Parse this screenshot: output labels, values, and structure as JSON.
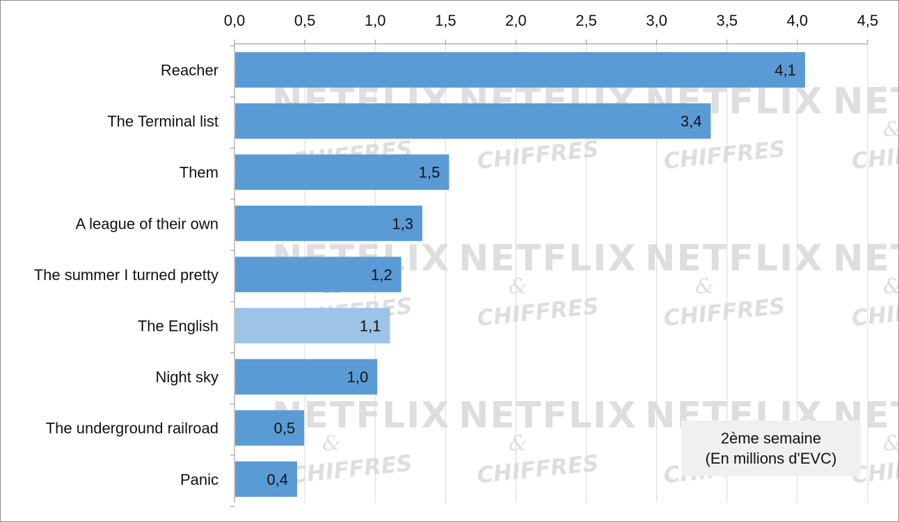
{
  "chart_data": {
    "type": "bar",
    "orientation": "horizontal",
    "categories": [
      "Reacher",
      "The Terminal list",
      "Them",
      "A league of their own",
      "The summer I turned pretty",
      "The English",
      "Night sky",
      "The underground railroad",
      "Panic"
    ],
    "values": [
      4.05,
      3.38,
      1.52,
      1.33,
      1.18,
      1.1,
      1.01,
      0.49,
      0.44
    ],
    "value_labels": [
      "4,1",
      "3,4",
      "1,5",
      "1,3",
      "1,2",
      "1,1",
      "1,0",
      "0,5",
      "0,4"
    ],
    "highlighted_category": "The English",
    "xlim": [
      0,
      4.5
    ],
    "x_ticks": [
      "0,0",
      "0,5",
      "1,0",
      "1,5",
      "2,0",
      "2,5",
      "3,0",
      "3,5",
      "4,0",
      "4,5"
    ],
    "x_axis_position": "top",
    "grid": true,
    "colors": {
      "bar": "#5b9bd5",
      "bar_highlight": "#9dc3e6",
      "grid": "#d9d9d9"
    },
    "annotation": [
      "2ème semaine",
      "(En millions d'EVC)"
    ],
    "watermark": [
      "NETFLIX",
      "&",
      "CHIFFRES"
    ]
  }
}
